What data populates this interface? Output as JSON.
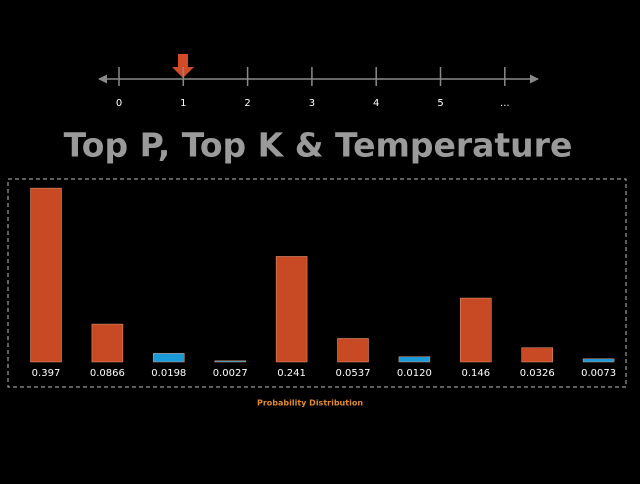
{
  "timeline": {
    "labels": [
      "0",
      "1",
      "2",
      "3",
      "4",
      "5",
      "..."
    ]
  },
  "chart_data": {
    "type": "bar",
    "title": "Top P, Top K  & Temperature",
    "x_label": "Probability Distribution",
    "categories": [
      null,
      null,
      null,
      null,
      null,
      null,
      null,
      null,
      null,
      null
    ],
    "values": [
      0.397,
      0.0866,
      0.0198,
      0.0027,
      0.241,
      0.0537,
      0.012,
      0.146,
      0.0326,
      0.0073
    ],
    "value_labels": [
      "0.397",
      "0.0866",
      "0.0198",
      "0.0027",
      "0.241",
      "0.0537",
      "0.0120",
      "0.146",
      "0.0326",
      "0.0073"
    ],
    "colors": [
      "#c84a24",
      "#c84a24",
      "#1a9ad6",
      "#1a9ad6",
      "#c84a24",
      "#c84a24",
      "#1a9ad6",
      "#c84a24",
      "#c84a24",
      "#1a9ad6"
    ]
  }
}
